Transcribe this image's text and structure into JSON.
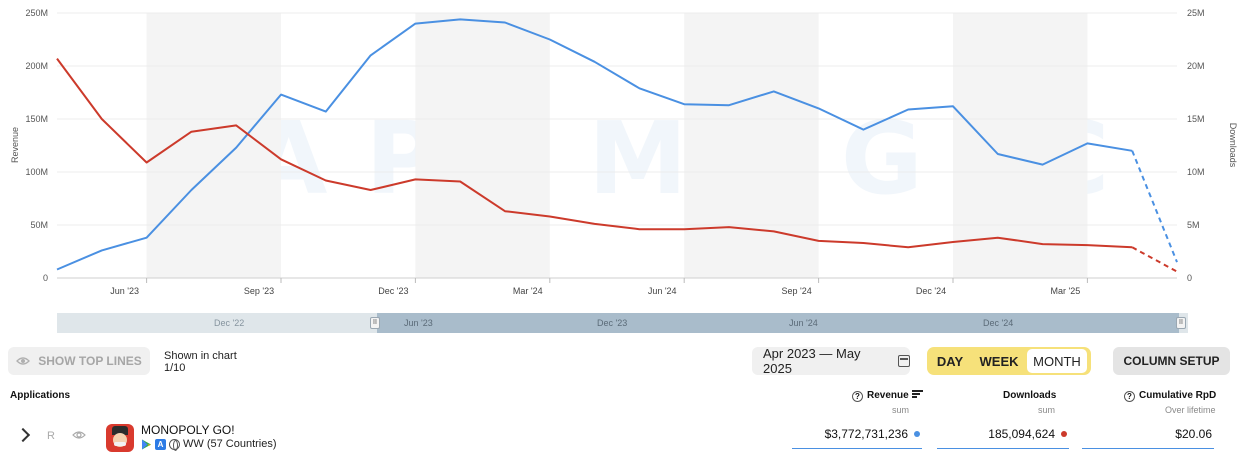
{
  "watermark": "APPMAGIC",
  "chart_data": {
    "type": "line",
    "x": [
      "Apr '23",
      "May '23",
      "Jun '23",
      "Jul '23",
      "Aug '23",
      "Sep '23",
      "Oct '23",
      "Nov '23",
      "Dec '23",
      "Jan '24",
      "Feb '24",
      "Mar '24",
      "Apr '24",
      "May '24",
      "Jun '24",
      "Jul '24",
      "Aug '24",
      "Sep '24",
      "Oct '24",
      "Nov '24",
      "Dec '24",
      "Jan '25",
      "Feb '25",
      "Mar '25",
      "Apr '25",
      "May '25"
    ],
    "xticks": [
      "Jun '23",
      "Sep '23",
      "Dec '23",
      "Mar '24",
      "Jun '24",
      "Sep '24",
      "Dec '24",
      "Mar '25"
    ],
    "ylabel_left": "Revenue",
    "ylabel_right": "Downloads",
    "yticks_left": [
      "0",
      "50M",
      "100M",
      "150M",
      "200M",
      "250M"
    ],
    "yticks_right": [
      "0",
      "5M",
      "10M",
      "15M",
      "20M",
      "25M"
    ],
    "ylim_left": [
      0,
      250000000
    ],
    "ylim_right": [
      0,
      25000000
    ],
    "grid": true,
    "shaded_quarters": true,
    "series": [
      {
        "name": "Revenue",
        "axis": "left",
        "color": "#4a90e2",
        "values": [
          8000000,
          26000000,
          38000000,
          83000000,
          123000000,
          173000000,
          157000000,
          210000000,
          240000000,
          244000000,
          241000000,
          225000000,
          204000000,
          179000000,
          164000000,
          163000000,
          176000000,
          160000000,
          140000000,
          159000000,
          162000000,
          117000000,
          107000000,
          127000000,
          120000000,
          15000000
        ],
        "partial_last": true
      },
      {
        "name": "Downloads",
        "axis": "right",
        "color": "#cc3a2b",
        "values": [
          20700000,
          15000000,
          10900000,
          13800000,
          14400000,
          11200000,
          9200000,
          8300000,
          9300000,
          9100000,
          6300000,
          5800000,
          5100000,
          4600000,
          4600000,
          4800000,
          4400000,
          3500000,
          3300000,
          2900000,
          3400000,
          3800000,
          3200000,
          3100000,
          2900000,
          600000
        ],
        "partial_last": true
      }
    ]
  },
  "navigator": {
    "labels_outside": [
      "Dec '22"
    ],
    "labels_inside": [
      "Jun '23",
      "Dec '23",
      "Jun '24",
      "Dec '24"
    ]
  },
  "toolbar": {
    "show_top_lines": "SHOW TOP LINES",
    "shown_in_chart": "Shown in chart",
    "shown_count": "1/10",
    "date_range": "Apr 2023 — May 2025",
    "period_day": "DAY",
    "period_week": "WEEK",
    "period_month": "MONTH",
    "selected_period": "MONTH",
    "column_setup": "COLUMN SETUP"
  },
  "table": {
    "col_applications": "Applications",
    "col_revenue": "Revenue",
    "col_revenue_sub": "sum",
    "col_downloads": "Downloads",
    "col_downloads_sub": "sum",
    "col_rpd": "Cumulative RpD",
    "col_rpd_sub": "Over lifetime",
    "rows": [
      {
        "badge": "R",
        "name": "MONOPOLY GO!",
        "region": "WW (57 Countries)",
        "revenue": "$3,772,731,236",
        "downloads": "185,094,624",
        "rpd": "$20.06"
      }
    ]
  },
  "colors": {
    "revenue": "#4a90e2",
    "downloads": "#cc3a2b",
    "period_active": "#f6e17a"
  }
}
